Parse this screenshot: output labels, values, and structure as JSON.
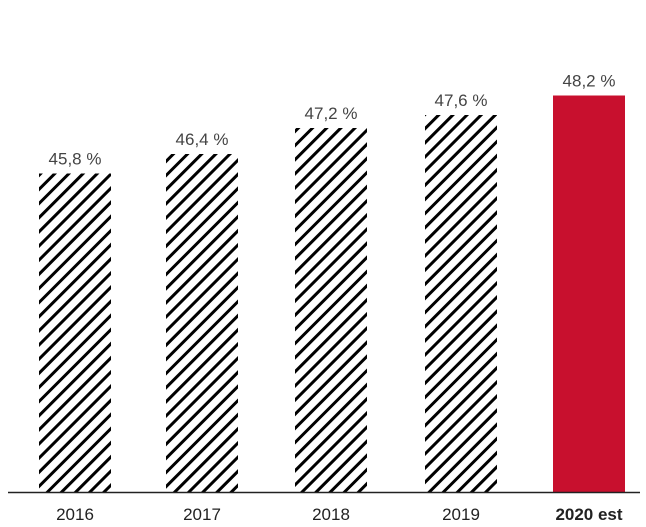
{
  "chart_data": {
    "type": "bar",
    "title": "",
    "xlabel": "",
    "ylabel": "",
    "categories": [
      "2016",
      "2017",
      "2018",
      "2019",
      "2020 est"
    ],
    "values": [
      45.8,
      46.4,
      47.2,
      47.6,
      48.2
    ],
    "value_labels": [
      "45,8 %",
      "46,4 %",
      "47,2 %",
      "47,6 %",
      "48,2 %"
    ],
    "highlight_category": "2020 est",
    "colors": {
      "hatch_stroke": "#000000",
      "highlight_fill": "#c8102e",
      "axis": "#222222"
    },
    "grid": false,
    "legend": "none"
  }
}
